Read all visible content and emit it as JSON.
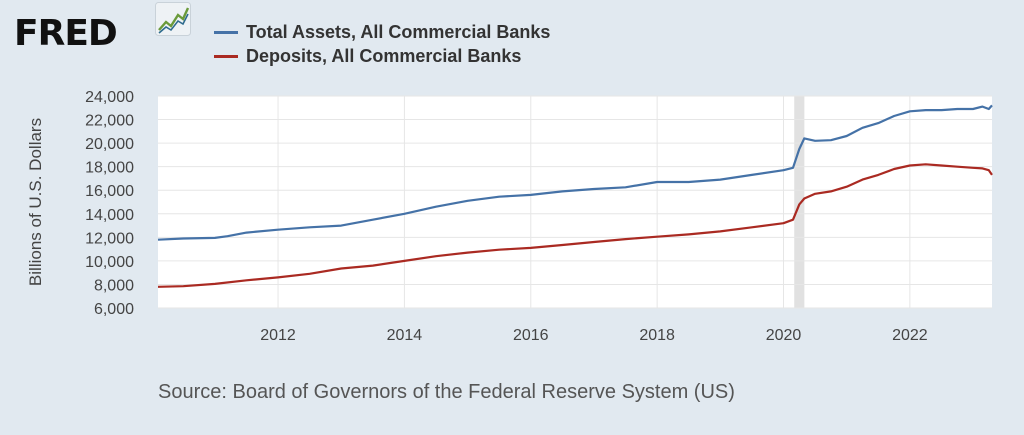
{
  "logo": {
    "text": "FRED",
    "icon": "line-chart-icon"
  },
  "colors": {
    "background": "#e1e9f0",
    "plot": "#ffffff",
    "grid": "#e6e6e6",
    "recession": "#e1e1e1",
    "assets": "#4572a7",
    "deposits": "#aa2a22"
  },
  "source": "Source: Board of Governors of the Federal Reserve System (US)",
  "chart_data": {
    "type": "line",
    "title": "",
    "xlabel": "",
    "ylabel": "Billions of U.S. Dollars",
    "xlim": [
      2010.1,
      2023.3
    ],
    "ylim": [
      6000,
      24000
    ],
    "yticks": [
      6000,
      8000,
      10000,
      12000,
      14000,
      16000,
      18000,
      20000,
      22000,
      24000
    ],
    "ytick_labels": [
      "6,000",
      "8,000",
      "10,000",
      "12,000",
      "14,000",
      "16,000",
      "18,000",
      "20,000",
      "22,000",
      "24,000"
    ],
    "xticks": [
      2012,
      2014,
      2016,
      2018,
      2020,
      2022
    ],
    "xtick_labels": [
      "2012",
      "2014",
      "2016",
      "2018",
      "2020",
      "2022"
    ],
    "grid": true,
    "legend": "top-left",
    "recession_band": [
      2020.17,
      2020.33
    ],
    "series": [
      {
        "name": "Total Assets, All Commercial Banks",
        "color": "#4572a7",
        "x": [
          2010.1,
          2010.5,
          2011.0,
          2011.2,
          2011.5,
          2012.0,
          2012.5,
          2013.0,
          2013.5,
          2014.0,
          2014.5,
          2015.0,
          2015.5,
          2016.0,
          2016.5,
          2017.0,
          2017.5,
          2018.0,
          2018.5,
          2019.0,
          2019.5,
          2020.0,
          2020.15,
          2020.25,
          2020.33,
          2020.5,
          2020.75,
          2021.0,
          2021.25,
          2021.5,
          2021.75,
          2022.0,
          2022.25,
          2022.5,
          2022.75,
          2023.0,
          2023.15,
          2023.25,
          2023.3
        ],
        "y": [
          11800,
          11900,
          11950,
          12100,
          12400,
          12650,
          12850,
          13000,
          13500,
          14000,
          14600,
          15100,
          15450,
          15600,
          15900,
          16100,
          16250,
          16700,
          16700,
          16900,
          17300,
          17700,
          17900,
          19500,
          20400,
          20200,
          20250,
          20600,
          21300,
          21700,
          22300,
          22700,
          22800,
          22800,
          22900,
          22900,
          23100,
          22900,
          23200
        ]
      },
      {
        "name": "Deposits, All Commercial Banks",
        "color": "#aa2a22",
        "x": [
          2010.1,
          2010.5,
          2011.0,
          2011.5,
          2012.0,
          2012.5,
          2013.0,
          2013.5,
          2014.0,
          2014.5,
          2015.0,
          2015.5,
          2016.0,
          2016.5,
          2017.0,
          2017.5,
          2018.0,
          2018.5,
          2019.0,
          2019.5,
          2020.0,
          2020.15,
          2020.25,
          2020.33,
          2020.5,
          2020.75,
          2021.0,
          2021.25,
          2021.5,
          2021.75,
          2022.0,
          2022.25,
          2022.5,
          2022.75,
          2023.0,
          2023.15,
          2023.25,
          2023.3
        ],
        "y": [
          7800,
          7850,
          8050,
          8350,
          8600,
          8900,
          9350,
          9600,
          10000,
          10400,
          10700,
          10950,
          11100,
          11350,
          11600,
          11850,
          12050,
          12250,
          12500,
          12850,
          13200,
          13500,
          14800,
          15300,
          15700,
          15900,
          16300,
          16900,
          17300,
          17800,
          18100,
          18200,
          18100,
          18000,
          17900,
          17850,
          17700,
          17300
        ]
      }
    ]
  }
}
